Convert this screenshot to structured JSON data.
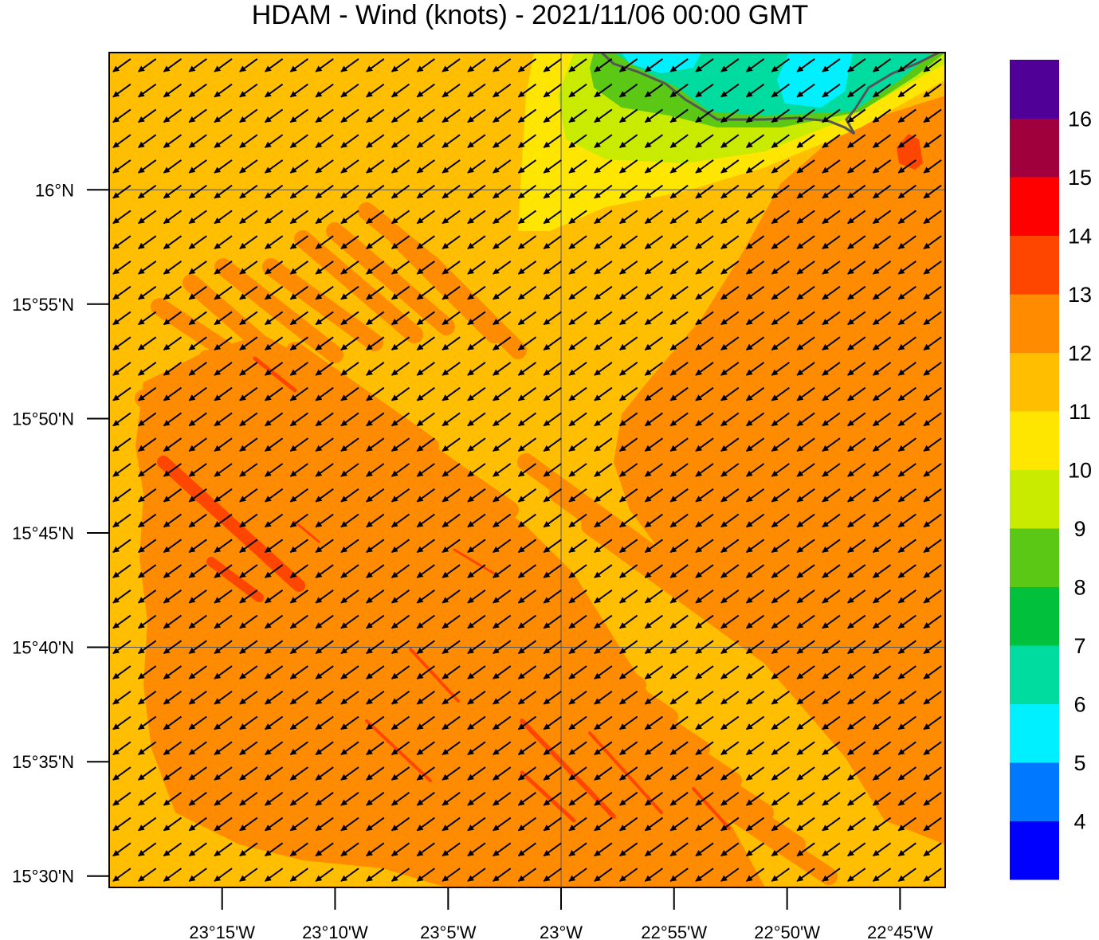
{
  "title": "HDAM - Wind (knots)  -  2021/11/06  00:00 GMT",
  "map": {
    "lon_range": [
      -23.3333,
      -22.7167
    ],
    "lat_range": [
      15.4917,
      16.1
    ],
    "lat_ticks": [
      {
        "value": 16.0,
        "label": "16°N"
      },
      {
        "value": 15.9167,
        "label": "15°55'N"
      },
      {
        "value": 15.8333,
        "label": "15°50'N"
      },
      {
        "value": 15.75,
        "label": "15°45'N"
      },
      {
        "value": 15.6667,
        "label": "15°40'N"
      },
      {
        "value": 15.5833,
        "label": "15°35'N"
      },
      {
        "value": 15.5,
        "label": "15°30'N"
      }
    ],
    "lon_ticks": [
      {
        "value": -23.25,
        "label": "23°15'W"
      },
      {
        "value": -23.1667,
        "label": "23°10'W"
      },
      {
        "value": -23.0833,
        "label": "23°5'W"
      },
      {
        "value": -23.0,
        "label": "23°W"
      },
      {
        "value": -22.9167,
        "label": "22°55'W"
      },
      {
        "value": -22.8333,
        "label": "22°50'W"
      },
      {
        "value": -22.75,
        "label": "22°45'W"
      }
    ],
    "gridlines": {
      "lat": [
        16.0,
        15.6667
      ],
      "lon": [
        -23.0
      ]
    },
    "wind_direction": "from northeast (arrows point southwest)",
    "dominant_speed_knots": "11-12",
    "land_feature": "coastline at top-right"
  },
  "colorbar": {
    "labels": [
      "4",
      "5",
      "6",
      "7",
      "8",
      "9",
      "10",
      "11",
      "12",
      "13",
      "14",
      "15",
      "16"
    ],
    "colors": [
      "#0000ff",
      "#0078ff",
      "#00f0ff",
      "#00dca0",
      "#00c03c",
      "#5ac814",
      "#c8eb00",
      "#ffe600",
      "#ffbe00",
      "#ff8c00",
      "#ff4600",
      "#ff0000",
      "#a0003c",
      "#500096"
    ]
  },
  "palette": {
    "base": "#ffbe00",
    "stripe": "#ff8c00",
    "streak": "#ff4600",
    "yellow": "#ffe600",
    "lightgreen": "#c8eb00",
    "green": "#5ac814",
    "aqua": "#00dca0",
    "cyan": "#00f0ff",
    "coast": "#555555"
  }
}
